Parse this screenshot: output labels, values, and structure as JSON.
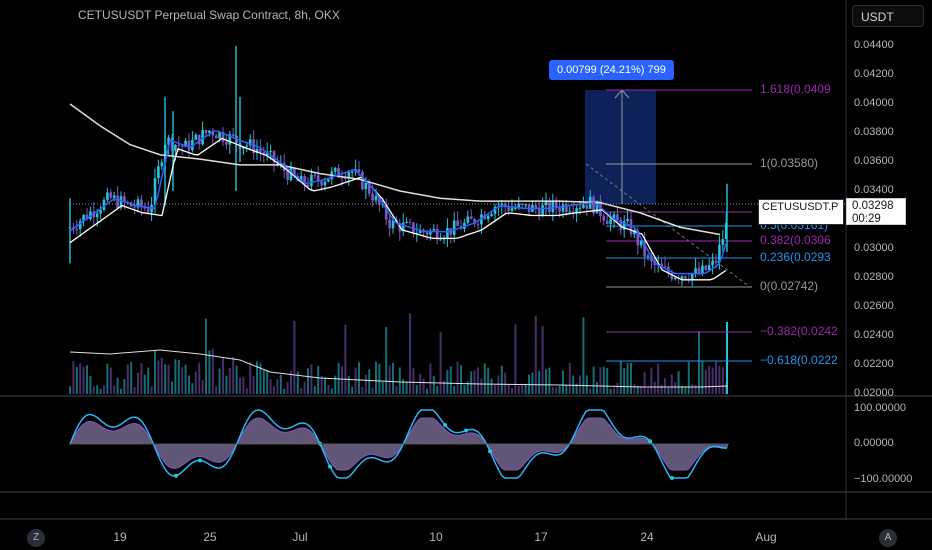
{
  "header": {
    "title": "CETUSUSDT Perpetual Swap Contract, 8h, OKX",
    "currency_button": "USDT"
  },
  "price_axis": {
    "ticks": [
      "0.04400",
      "0.04200",
      "0.04000",
      "0.03800",
      "0.03600",
      "0.03400",
      "0.03200",
      "0.03000",
      "0.02800",
      "0.02600",
      "0.02400",
      "0.02200",
      "0.02000"
    ]
  },
  "oscillator_axis": {
    "ticks": [
      "100.00000",
      "0.00000",
      "−100.00000"
    ]
  },
  "time_axis": {
    "ticks": [
      "19",
      "25",
      "Jul",
      "10",
      "17",
      "24",
      "Aug"
    ]
  },
  "fib": {
    "levels": [
      {
        "label": "1.618(0.0409",
        "color": "#9c27b0"
      },
      {
        "label": "1(0.03580)",
        "color": "#9598a1"
      },
      {
        "label": "0.618(0.0326",
        "color": "#9c27b0"
      },
      {
        "label": "0.5(0.03161)",
        "color": "#2196f3"
      },
      {
        "label": "0.382(0.0306",
        "color": "#9c27b0"
      },
      {
        "label": "0.236(0.0293",
        "color": "#2196f3"
      },
      {
        "label": "0(0.02742)",
        "color": "#9598a1"
      },
      {
        "label": "−0.382(0.0242",
        "color": "#9c27b0"
      },
      {
        "label": "−0.618(0.0222",
        "color": "#2196f3"
      }
    ]
  },
  "measure": {
    "label": "0.00799 (24.21%) 799"
  },
  "last_price": {
    "symbol": "CETUSUSDT.P",
    "price": "0.03298",
    "countdown": "00:29"
  },
  "footer": {
    "left_button": "Z",
    "right_button": "A"
  },
  "colors": {
    "up": "#26c6da",
    "down": "#7e57c2",
    "accent": "#2962ff",
    "ma_slow": "#e0ded8"
  }
}
